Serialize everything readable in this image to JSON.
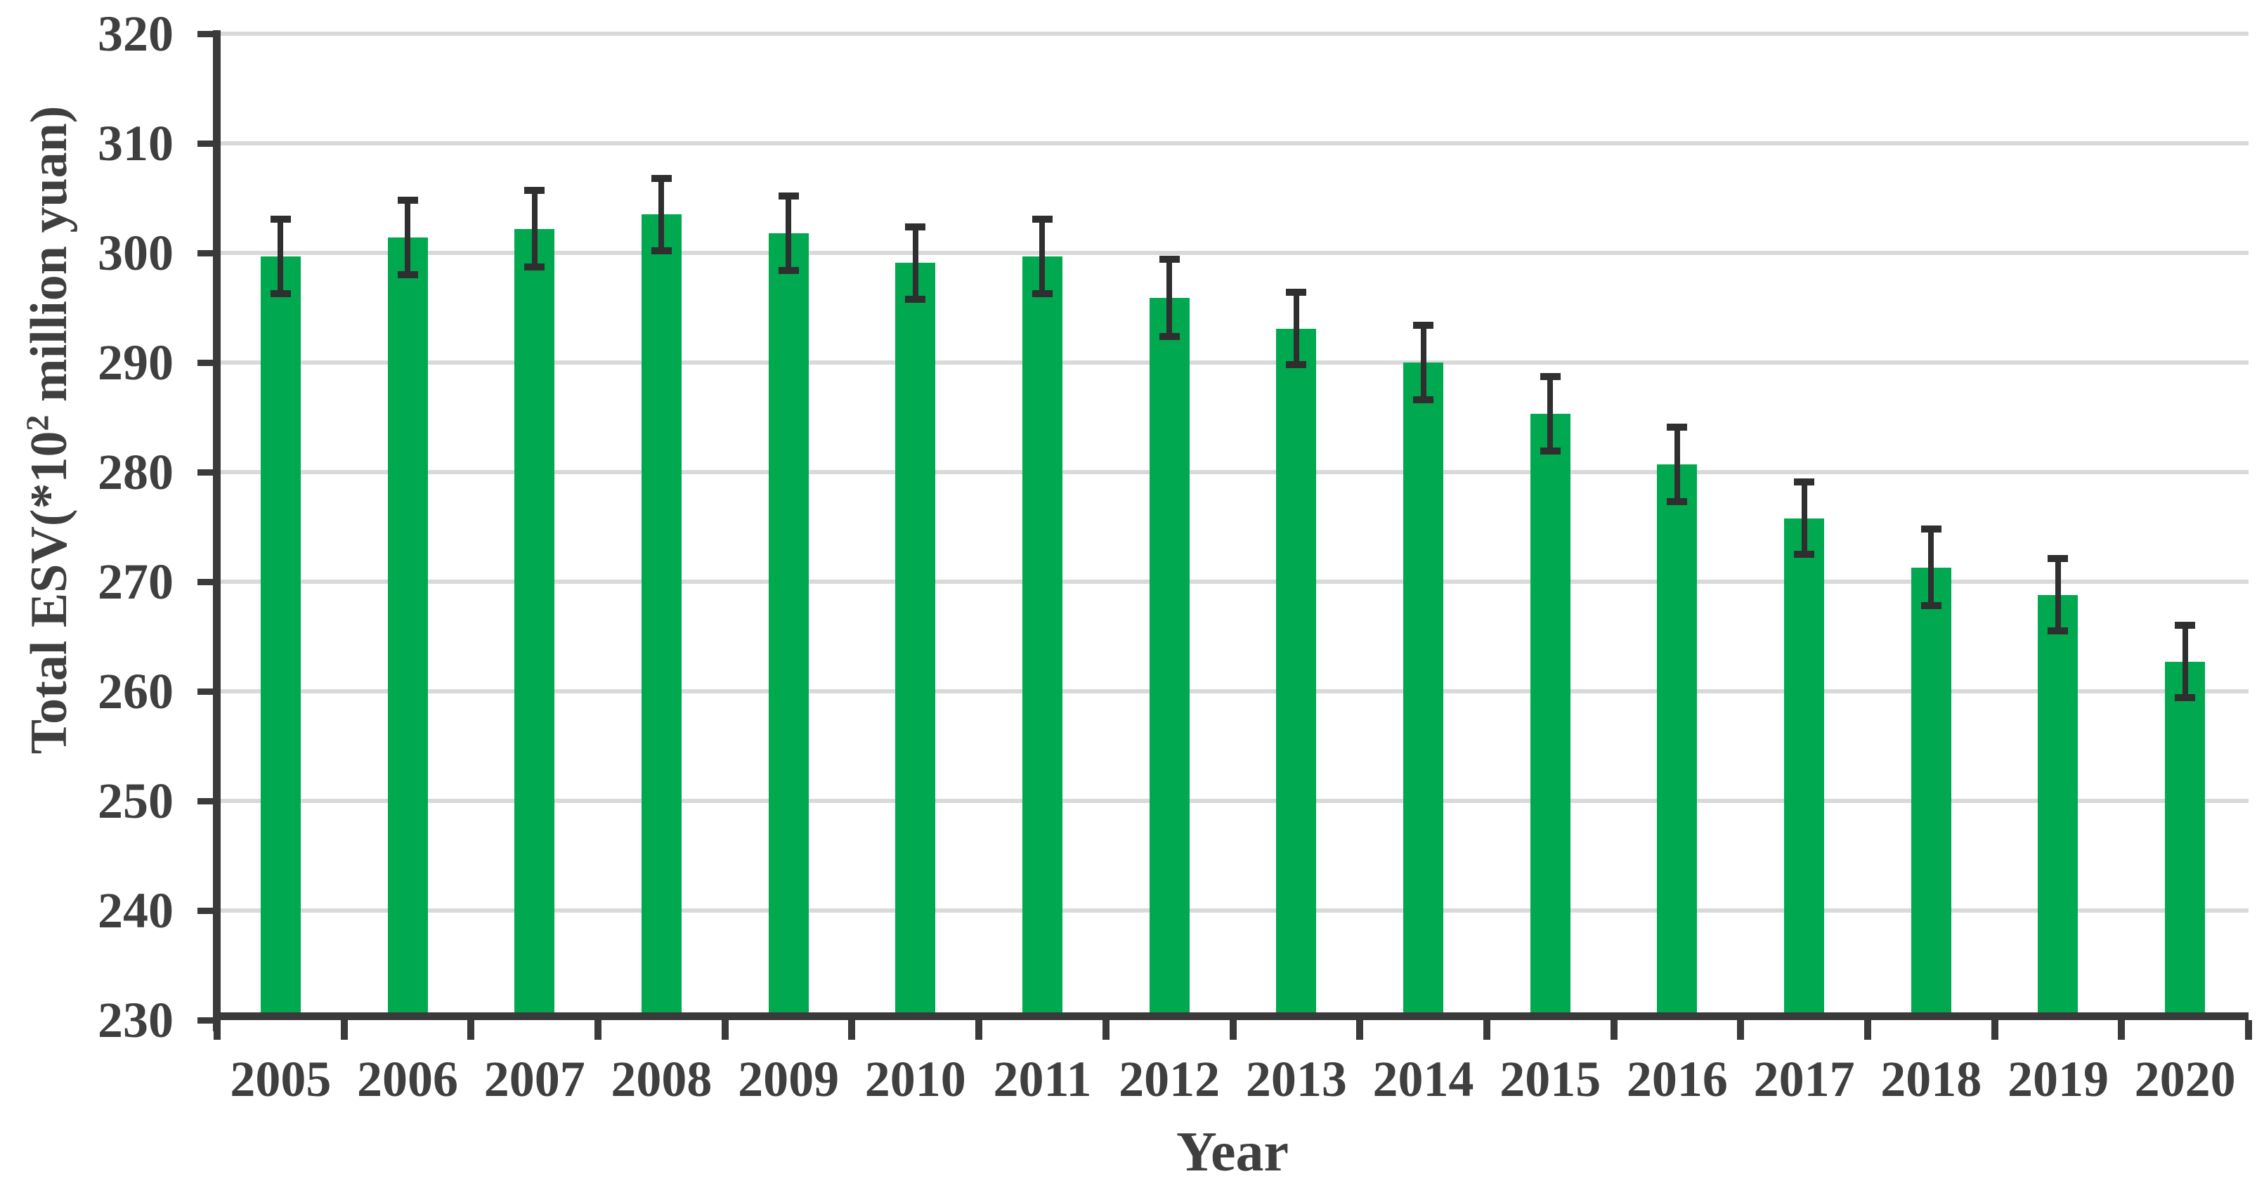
{
  "chart_data": {
    "type": "bar",
    "title": "",
    "xlabel": "Year",
    "ylabel": "Total ESV(*10² million yuan)",
    "ylabel_parts": {
      "prefix": "Total ESV(*10",
      "superscript": "2",
      "suffix": " million yuan)"
    },
    "categories": [
      "2005",
      "2006",
      "2007",
      "2008",
      "2009",
      "2010",
      "2011",
      "2012",
      "2013",
      "2014",
      "2015",
      "2016",
      "2017",
      "2018",
      "2019",
      "2020"
    ],
    "series": [
      {
        "name": "Total ESV",
        "values": [
          299.7,
          301.4,
          302.2,
          303.5,
          301.8,
          299.1,
          299.7,
          295.9,
          293.1,
          290.0,
          285.3,
          280.7,
          275.8,
          271.3,
          268.8,
          262.7
        ],
        "errors": [
          3.4,
          3.4,
          3.5,
          3.3,
          3.4,
          3.3,
          3.4,
          3.5,
          3.3,
          3.4,
          3.4,
          3.4,
          3.3,
          3.5,
          3.3,
          3.3
        ]
      }
    ],
    "ylim": [
      230,
      320
    ],
    "y_ticks": [
      "230",
      "240",
      "250",
      "260",
      "270",
      "280",
      "290",
      "300",
      "310",
      "320"
    ],
    "y_tick_step": 10,
    "grid": true,
    "legend": false,
    "error_bars": true,
    "colors": {
      "bar": "#00a950",
      "axis": "#3a3a3a",
      "gridline": "#d9d9d9",
      "error": "#2f2f2f",
      "text": "#3f3f3f",
      "background": "#ffffff"
    }
  }
}
